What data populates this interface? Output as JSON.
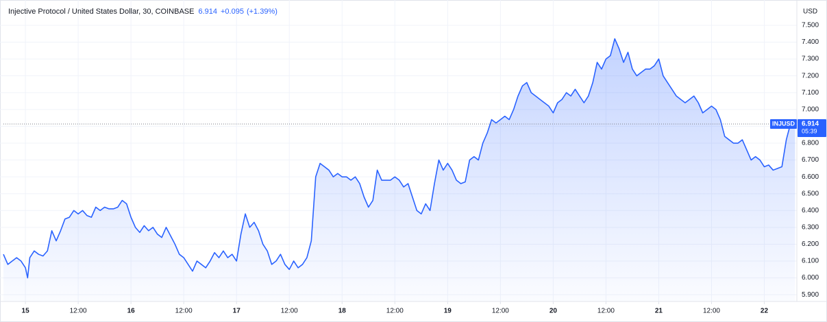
{
  "chart_data": {
    "type": "area",
    "title": "Injective Protocol / United States Dollar, 30, COINBASE",
    "last_price": 6.914,
    "change": "+0.095",
    "change_pct": "(+1.39%)",
    "currency": "USD",
    "countdown": "05:39",
    "grid": true,
    "x": [
      -5,
      -4,
      -3,
      -2,
      -1,
      0,
      0.5,
      1,
      2,
      3,
      4,
      5,
      6,
      7,
      8,
      9,
      10,
      11,
      12,
      13,
      14,
      15,
      16,
      17,
      18,
      19,
      20,
      21,
      22,
      23,
      24,
      25,
      26,
      27,
      28,
      29,
      30,
      31,
      32,
      33,
      34,
      35,
      36,
      37,
      38,
      39,
      40,
      41,
      42,
      43,
      44,
      45,
      46,
      47,
      48,
      49,
      50,
      51,
      52,
      53,
      54,
      55,
      56,
      57,
      58,
      59,
      60,
      61,
      62,
      63,
      64,
      65,
      66,
      67,
      68,
      69,
      70,
      71,
      72,
      73,
      74,
      75,
      76,
      77,
      78,
      79,
      80,
      81,
      82,
      83,
      84,
      85,
      86,
      87,
      88,
      89,
      90,
      91,
      92,
      93,
      94,
      95,
      96,
      97,
      98,
      99,
      100,
      101,
      102,
      103,
      104,
      105,
      106,
      107,
      108,
      109,
      110,
      111,
      112,
      113,
      114,
      115,
      116,
      117,
      118,
      119,
      120,
      121,
      122,
      123,
      124,
      125,
      126,
      127,
      128,
      129,
      130,
      131,
      132,
      133,
      134,
      135,
      136,
      137,
      138,
      139,
      140,
      141,
      142,
      143,
      144,
      145,
      146,
      147,
      148,
      149,
      150,
      151,
      152,
      153,
      154,
      155,
      156,
      157,
      158,
      159,
      160,
      161,
      162,
      163,
      164,
      165,
      166,
      167,
      168,
      169,
      170,
      171,
      172,
      173,
      174,
      175
    ],
    "series": [
      {
        "name": "INJUSD",
        "color": "#2962ff",
        "values": [
          6.14,
          6.08,
          6.1,
          6.12,
          6.1,
          6.06,
          6.0,
          6.12,
          6.16,
          6.14,
          6.13,
          6.16,
          6.28,
          6.22,
          6.28,
          6.35,
          6.36,
          6.4,
          6.38,
          6.4,
          6.37,
          6.36,
          6.42,
          6.4,
          6.42,
          6.41,
          6.41,
          6.42,
          6.46,
          6.44,
          6.36,
          6.3,
          6.27,
          6.31,
          6.28,
          6.3,
          6.26,
          6.24,
          6.3,
          6.25,
          6.2,
          6.14,
          6.12,
          6.08,
          6.04,
          6.1,
          6.08,
          6.06,
          6.1,
          6.15,
          6.12,
          6.16,
          6.12,
          6.14,
          6.1,
          6.26,
          6.38,
          6.3,
          6.33,
          6.28,
          6.2,
          6.16,
          6.08,
          6.1,
          6.14,
          6.08,
          6.05,
          6.1,
          6.06,
          6.08,
          6.12,
          6.22,
          6.6,
          6.68,
          6.66,
          6.64,
          6.6,
          6.62,
          6.6,
          6.6,
          6.58,
          6.6,
          6.56,
          6.48,
          6.42,
          6.46,
          6.64,
          6.58,
          6.58,
          6.58,
          6.6,
          6.58,
          6.54,
          6.56,
          6.48,
          6.4,
          6.38,
          6.44,
          6.4,
          6.56,
          6.7,
          6.64,
          6.68,
          6.64,
          6.58,
          6.56,
          6.57,
          6.7,
          6.72,
          6.7,
          6.8,
          6.86,
          6.94,
          6.92,
          6.94,
          6.96,
          6.94,
          7.0,
          7.08,
          7.14,
          7.16,
          7.1,
          7.08,
          7.06,
          7.04,
          7.02,
          6.98,
          7.04,
          7.06,
          7.1,
          7.08,
          7.12,
          7.08,
          7.04,
          7.08,
          7.16,
          7.28,
          7.24,
          7.3,
          7.32,
          7.42,
          7.36,
          7.28,
          7.34,
          7.24,
          7.2,
          7.22,
          7.24,
          7.24,
          7.26,
          7.3,
          7.2,
          7.16,
          7.12,
          7.08,
          7.06,
          7.04,
          7.06,
          7.08,
          7.04,
          6.98,
          7.0,
          7.02,
          7.0,
          6.94,
          6.84,
          6.82,
          6.8,
          6.8,
          6.82,
          6.76,
          6.7,
          6.72,
          6.7,
          6.66,
          6.67,
          6.64,
          6.65,
          6.66,
          6.82,
          6.92,
          6.914
        ]
      }
    ],
    "xlim": [
      -5,
      175.4
    ],
    "ylim": [
      5.86,
      7.63
    ],
    "xticks": [
      {
        "value": 0,
        "label": "15"
      },
      {
        "value": 12,
        "label": "12:00"
      },
      {
        "value": 24,
        "label": "16"
      },
      {
        "value": 36,
        "label": "12:00"
      },
      {
        "value": 48,
        "label": "17"
      },
      {
        "value": 60,
        "label": "12:00"
      },
      {
        "value": 72,
        "label": "18"
      },
      {
        "value": 84,
        "label": "12:00"
      },
      {
        "value": 96,
        "label": "19"
      },
      {
        "value": 108,
        "label": "12:00"
      },
      {
        "value": 120,
        "label": "20"
      },
      {
        "value": 132,
        "label": "12:00"
      },
      {
        "value": 144,
        "label": "21"
      },
      {
        "value": 156,
        "label": "12:00"
      },
      {
        "value": 168,
        "label": "22"
      }
    ],
    "yticks": [
      {
        "value": 5.9,
        "label": "5.900"
      },
      {
        "value": 6.0,
        "label": "6.000"
      },
      {
        "value": 6.1,
        "label": "6.100"
      },
      {
        "value": 6.2,
        "label": "6.200"
      },
      {
        "value": 6.3,
        "label": "6.300"
      },
      {
        "value": 6.4,
        "label": "6.400"
      },
      {
        "value": 6.5,
        "label": "6.500"
      },
      {
        "value": 6.6,
        "label": "6.600"
      },
      {
        "value": 6.7,
        "label": "6.700"
      },
      {
        "value": 6.8,
        "label": "6.800"
      },
      {
        "value": 6.9,
        "label": "6.900"
      },
      {
        "value": 7.0,
        "label": "7.000"
      },
      {
        "value": 7.1,
        "label": "7.100"
      },
      {
        "value": 7.2,
        "label": "7.200"
      },
      {
        "value": 7.3,
        "label": "7.300"
      },
      {
        "value": 7.4,
        "label": "7.400"
      },
      {
        "value": 7.5,
        "label": "7.500"
      }
    ]
  }
}
